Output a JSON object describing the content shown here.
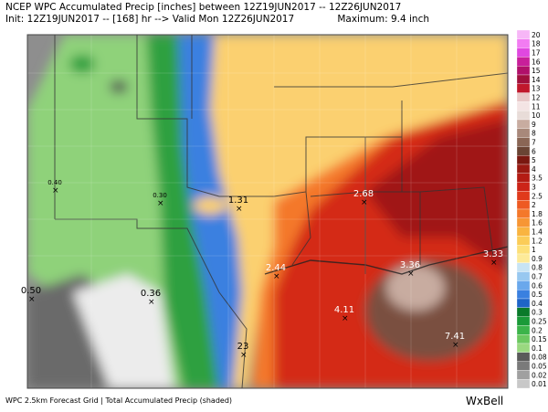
{
  "header": {
    "line1": "NCEP WPC Accumulated Precip [inches] between 12Z19JUN2017 -- 12Z26JUN2017",
    "line2": "Init: 12Z19JUN2017 -- [168] hr --> Valid Mon 12Z26JUN2017",
    "maximum": "Maximum: 9.4 inch"
  },
  "colorbar": [
    {
      "label": "20",
      "color": "#f7b6f7"
    },
    {
      "label": "18",
      "color": "#f27cf2"
    },
    {
      "label": "17",
      "color": "#e048e0"
    },
    {
      "label": "16",
      "color": "#c81f9a"
    },
    {
      "label": "15",
      "color": "#b0106a"
    },
    {
      "label": "14",
      "color": "#a0103c"
    },
    {
      "label": "13",
      "color": "#c0182c"
    },
    {
      "label": "12",
      "color": "#e8c8c8"
    },
    {
      "label": "11",
      "color": "#f4e4e4"
    },
    {
      "label": "10",
      "color": "#e8dcd8"
    },
    {
      "label": "9",
      "color": "#c8aca0"
    },
    {
      "label": "8",
      "color": "#a8887a"
    },
    {
      "label": "7",
      "color": "#8a6655"
    },
    {
      "label": "6",
      "color": "#6a4434"
    },
    {
      "label": "5",
      "color": "#7a1810"
    },
    {
      "label": "4",
      "color": "#9a1a12"
    },
    {
      "label": "3.5",
      "color": "#b41c14"
    },
    {
      "label": "3",
      "color": "#cc2418"
    },
    {
      "label": "2.5",
      "color": "#e03a1c"
    },
    {
      "label": "2",
      "color": "#ee5a22"
    },
    {
      "label": "1.8",
      "color": "#f4782a"
    },
    {
      "label": "1.6",
      "color": "#f79634"
    },
    {
      "label": "1.4",
      "color": "#f9b440"
    },
    {
      "label": "1.2",
      "color": "#fbcc58"
    },
    {
      "label": "1",
      "color": "#fde078"
    },
    {
      "label": "0.9",
      "color": "#fdea98"
    },
    {
      "label": "0.8",
      "color": "#c8e4f4"
    },
    {
      "label": "0.7",
      "color": "#98c8f0"
    },
    {
      "label": "0.6",
      "color": "#6aa8ec"
    },
    {
      "label": "0.5",
      "color": "#3a80e0"
    },
    {
      "label": "0.4",
      "color": "#1e64c8"
    },
    {
      "label": "0.3",
      "color": "#0a7a2a"
    },
    {
      "label": "0.25",
      "color": "#1a9a38"
    },
    {
      "label": "0.2",
      "color": "#3cb44a"
    },
    {
      "label": "0.15",
      "color": "#6cc860"
    },
    {
      "label": "0.1",
      "color": "#9ad880"
    },
    {
      "label": "0.08",
      "color": "#5a5a5a"
    },
    {
      "label": "0.05",
      "color": "#7a7a7a"
    },
    {
      "label": "0.02",
      "color": "#a0a0a0"
    },
    {
      "label": "0.01",
      "color": "#c8c8c8"
    }
  ],
  "points": [
    "0.40",
    "0.30",
    "1.31",
    "2.68",
    "0.50",
    "2.44",
    "0.36",
    "4.11",
    "3.36",
    "3.33",
    "7.41",
    "23"
  ],
  "footer": {
    "left": "WPC 2.5km Forecast Grid | Total Accumulated Precip (shaded)",
    "brand": "WxBell"
  }
}
